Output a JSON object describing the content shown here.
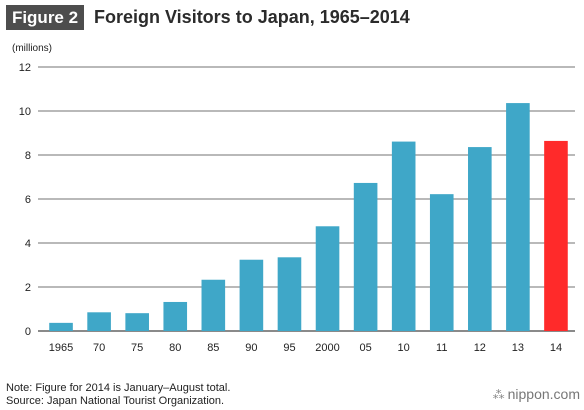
{
  "figure_label": "Figure 2",
  "brand": "nippon.com",
  "notes": {
    "note": "Note: Figure for 2014 is January–August total.",
    "source": "Source: Japan National Tourist Organization."
  },
  "colors": {
    "bar": "#3fa7c8",
    "highlight": "#ff2a2a",
    "grid": "#444444",
    "badge": "#4d4d4d"
  },
  "chart_data": {
    "type": "bar",
    "title": "Foreign Visitors to Japan, 1965–2014",
    "ylabel": "(millions)",
    "xlabel": "",
    "ylim": [
      0,
      12
    ],
    "yticks": [
      0,
      2,
      4,
      6,
      8,
      10,
      12
    ],
    "grid": true,
    "categories": [
      "1965",
      "70",
      "75",
      "80",
      "85",
      "90",
      "95",
      "2000",
      "05",
      "10",
      "11",
      "12",
      "13",
      "14"
    ],
    "values": [
      0.37,
      0.85,
      0.81,
      1.32,
      2.33,
      3.24,
      3.35,
      4.76,
      6.73,
      8.61,
      6.22,
      8.36,
      10.36,
      8.64
    ],
    "highlight_category": "14"
  }
}
